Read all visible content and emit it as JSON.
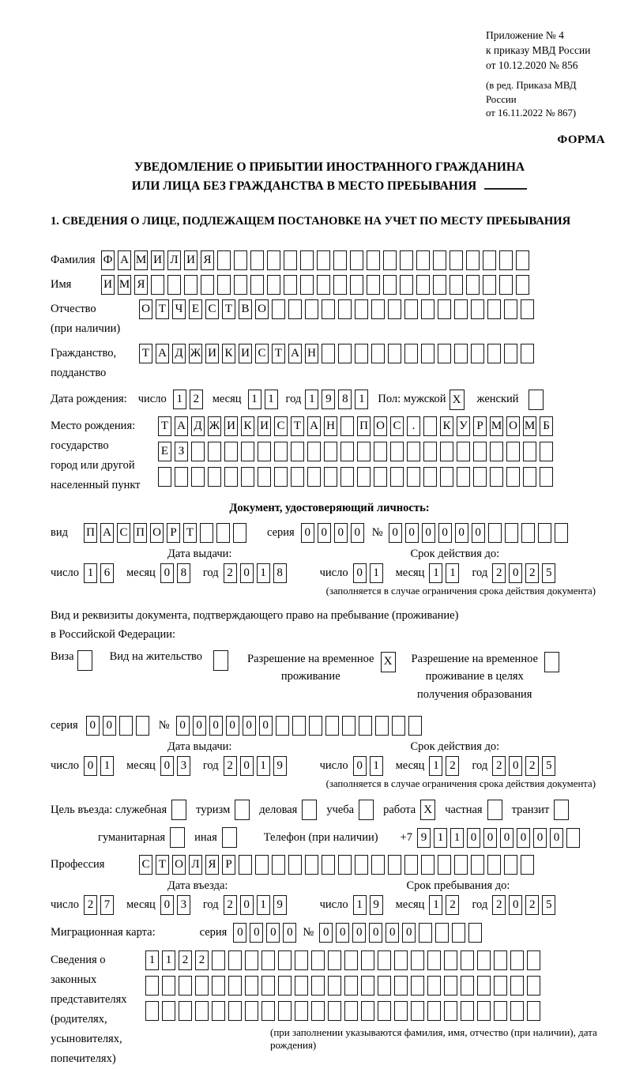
{
  "ink": "#000000",
  "header": {
    "appendix_lines": [
      "Приложение № 4",
      "к приказу МВД России",
      "от 10.12.2020 № 856"
    ],
    "edition_lines": [
      "(в ред. Приказа МВД России",
      "от 16.11.2022 № 867)"
    ],
    "forma": "ФОРМА"
  },
  "title": {
    "line1": "УВЕДОМЛЕНИЕ О ПРИБЫТИИ ИНОСТРАННОГО ГРАЖДАНИНА",
    "line2": "ИЛИ ЛИЦА БЕЗ ГРАЖДАНСТВА В МЕСТО ПРЕБЫВАНИЯ"
  },
  "section1": {
    "heading": "1. СВЕДЕНИЯ О ЛИЦЕ, ПОДЛЕЖАЩЕМ ПОСТАНОВКЕ НА УЧЕТ ПО МЕСТУ ПРЕБЫВАНИЯ"
  },
  "labels": {
    "surname": "Фамилия",
    "given_name": "Имя",
    "patronymic": [
      "Отчество",
      "(при наличии)"
    ],
    "citizenship": [
      "Гражданство,",
      "подданство"
    ],
    "birth_date": "Дата рождения:",
    "day": "число",
    "month": "месяц",
    "year": "год",
    "sex_male": "Пол: мужской",
    "sex_female": "женский",
    "birth_place": [
      "Место рождения:",
      "государство",
      "город или другой",
      "населенный пункт"
    ],
    "id_doc_heading": "Документ, удостоверяющий личность:",
    "doc_kind": "вид",
    "series": "серия",
    "number_sign": "№",
    "issue_date": "Дата выдачи:",
    "valid_until": "Срок действия до:",
    "limited_note": "(заполняется в случае ограничения срока действия документа)",
    "permit_intro": [
      "Вид и реквизиты документа, подтверждающего право на пребывание (проживание)",
      "в Российской Федерации:"
    ],
    "visa": "Виза",
    "residence_permit": "Вид на жительство",
    "temp_residence": [
      "Разрешение на временное",
      "проживание"
    ],
    "temp_residence_edu": [
      "Разрешение на временное",
      "проживание в целях",
      "получения образования"
    ],
    "purpose_official": "Цель въезда: служебная",
    "purpose_tourism": "туризм",
    "purpose_business": "деловая",
    "purpose_study": "учеба",
    "purpose_work": "работа",
    "purpose_private": "частная",
    "purpose_transit": "транзит",
    "purpose_humanitarian": "гуманитарная",
    "purpose_other": "иная",
    "phone": "Телефон (при наличии)",
    "phone_prefix": "+7",
    "profession": "Профессия",
    "entry_date": "Дата въезда:",
    "stay_until": "Срок пребывания до:",
    "migration_card": "Миграционная карта:",
    "representatives": [
      "Сведения о",
      "законных",
      "представителях",
      "(родителях,",
      "усыновителях,",
      "попечителях)"
    ],
    "representatives_note": "(при заполнении указываются фамилия, имя, отчество (при наличии), дата рождения)"
  },
  "fields": {
    "surname": {
      "value": "ФАМИЛИЯ",
      "count": 26
    },
    "given_name": {
      "value": "ИМЯ",
      "count": 26
    },
    "patronymic": {
      "value": "ОТЧЕСТВО",
      "count": 24
    },
    "citizenship": {
      "value": "ТАДЖИКИСТАН",
      "count": 24
    },
    "birth_place_row1": {
      "value": "ТАДЖИКИСТАН ПОС. КУРМОМБ",
      "count": 24
    },
    "birth_place_row2": {
      "value": "ЕЗ",
      "count": 24
    },
    "birth_place_row3": {
      "value": "",
      "count": 24
    },
    "id_doc_kind": {
      "value": "ПАСПОРТ",
      "count": 10
    },
    "id_doc_series": {
      "value": "0000",
      "count": 4
    },
    "id_doc_number": {
      "value": "000000",
      "count": 11
    },
    "permit_series": {
      "value": "00",
      "count": 4
    },
    "permit_number": {
      "value": "000000",
      "count": 15
    },
    "phone": {
      "value": "911000000",
      "count": 10
    },
    "profession": {
      "value": "СТОЛЯР",
      "count": 24
    },
    "migration_series": {
      "value": "0000",
      "count": 4
    },
    "migration_number": {
      "value": "000000",
      "count": 10
    },
    "representatives_row1": {
      "value": "1122",
      "count": 24
    },
    "representatives_row2": {
      "value": "",
      "count": 24
    },
    "representatives_row3": {
      "value": "",
      "count": 24
    }
  },
  "dates": {
    "birth": {
      "day": {
        "value": "12",
        "count": 2
      },
      "month": {
        "value": "11",
        "count": 2
      },
      "year": {
        "value": "1981",
        "count": 4
      }
    },
    "id_issue": {
      "day": {
        "value": "16",
        "count": 2
      },
      "month": {
        "value": "08",
        "count": 2
      },
      "year": {
        "value": "2018",
        "count": 4
      }
    },
    "id_expiry": {
      "day": {
        "value": "01",
        "count": 2
      },
      "month": {
        "value": "11",
        "count": 2
      },
      "year": {
        "value": "2025",
        "count": 4
      }
    },
    "permit_issue": {
      "day": {
        "value": "01",
        "count": 2
      },
      "month": {
        "value": "03",
        "count": 2
      },
      "year": {
        "value": "2019",
        "count": 4
      }
    },
    "permit_expiry": {
      "day": {
        "value": "01",
        "count": 2
      },
      "month": {
        "value": "12",
        "count": 2
      },
      "year": {
        "value": "2025",
        "count": 4
      }
    },
    "entry": {
      "day": {
        "value": "27",
        "count": 2
      },
      "month": {
        "value": "03",
        "count": 2
      },
      "year": {
        "value": "2019",
        "count": 4
      }
    },
    "stay_until": {
      "day": {
        "value": "19",
        "count": 2
      },
      "month": {
        "value": "12",
        "count": 2
      },
      "year": {
        "value": "2025",
        "count": 4
      }
    }
  },
  "checks": {
    "sex_male": {
      "value": "X",
      "count": 1
    },
    "sex_female": {
      "value": "",
      "count": 1
    },
    "visa": {
      "value": "",
      "count": 1
    },
    "residence_permit": {
      "value": "",
      "count": 1
    },
    "temp_residence": {
      "value": "X",
      "count": 1
    },
    "temp_residence_edu": {
      "value": "",
      "count": 1
    },
    "purpose_official": {
      "value": "",
      "count": 1
    },
    "purpose_tourism": {
      "value": "",
      "count": 1
    },
    "purpose_business": {
      "value": "",
      "count": 1
    },
    "purpose_study": {
      "value": "",
      "count": 1
    },
    "purpose_work": {
      "value": "X",
      "count": 1
    },
    "purpose_private": {
      "value": "",
      "count": 1
    },
    "purpose_transit": {
      "value": "",
      "count": 1
    },
    "purpose_humanitarian": {
      "value": "",
      "count": 1
    },
    "purpose_other": {
      "value": "",
      "count": 1
    }
  }
}
